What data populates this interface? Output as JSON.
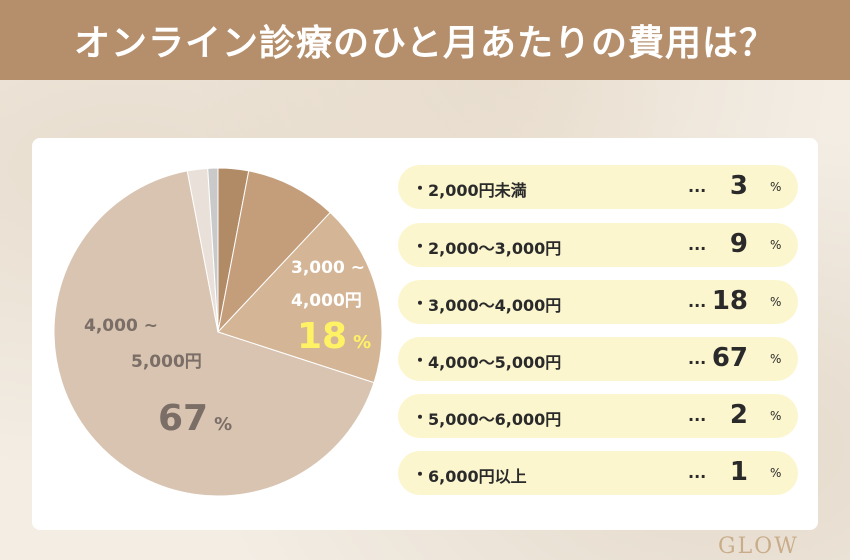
{
  "header": {
    "title": "オンライン診療のひと月あたりの費用は？"
  },
  "chart_data": {
    "type": "pie",
    "unit": "%",
    "categories": [
      "2,000円未満",
      "2,000〜3,000円",
      "3,000〜4,000円",
      "4,000〜5,000円",
      "5,000〜6,000円",
      "6,000円以上"
    ],
    "values": [
      3,
      9,
      18,
      67,
      2,
      1
    ],
    "colors": [
      "#b18a66",
      "#c49d7a",
      "#d4b596",
      "#d9c4b2",
      "#e9e1d9",
      "#c9c9c9"
    ],
    "on_chart_labels": {
      "slice_3": {
        "line1": "3,000 ~",
        "line2": "4,000円",
        "value": "18",
        "unit": "%"
      },
      "slice_4": {
        "line1": "4,000 ~",
        "line2": "5,000円",
        "value": "67",
        "unit": "%"
      }
    }
  },
  "legend_rows": [
    {
      "bullet": "・",
      "label": "2,000円未満",
      "dots": "...",
      "value": "3",
      "unit": "%"
    },
    {
      "bullet": "・",
      "label": "2,000〜3,000円",
      "dots": "...",
      "value": "9",
      "unit": "%"
    },
    {
      "bullet": "・",
      "label": "3,000〜4,000円",
      "dots": "...",
      "value": "18",
      "unit": "%"
    },
    {
      "bullet": "・",
      "label": "4,000〜5,000円",
      "dots": "...",
      "value": "67",
      "unit": "%"
    },
    {
      "bullet": "・",
      "label": "5,000〜6,000円",
      "dots": "...",
      "value": "2",
      "unit": "%"
    },
    {
      "bullet": "・",
      "label": "6,000円以上",
      "dots": "...",
      "value": "1",
      "unit": "%"
    }
  ],
  "logo": {
    "text": "GLOW",
    "mark": "logo-mark"
  }
}
